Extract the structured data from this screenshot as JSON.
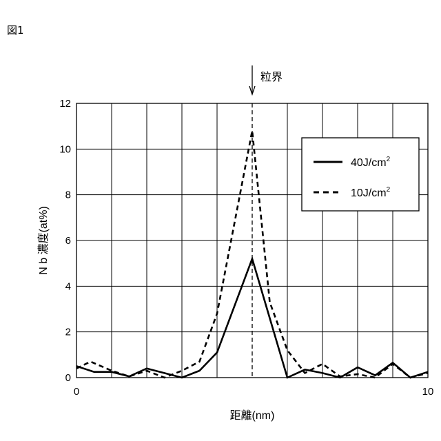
{
  "figure_label": "図1",
  "chart_data": {
    "type": "line",
    "annotation": "粒界",
    "xlabel": "距離(nm)",
    "ylabel": "N b 濃度(at%)",
    "xlim": [
      0,
      10
    ],
    "ylim": [
      0,
      12
    ],
    "x_ticks": [
      "0",
      "10"
    ],
    "y_ticks": [
      "0",
      "2",
      "4",
      "6",
      "8",
      "10",
      "12"
    ],
    "grid": true,
    "legend_position": "top-right",
    "boundary_x": 5,
    "series": [
      {
        "name": "40J/cm",
        "name_sup": "2",
        "style": "solid",
        "x": [
          0,
          0.5,
          1,
          1.5,
          2,
          2.5,
          3,
          3.5,
          4,
          5,
          6,
          6.5,
          7,
          7.5,
          8,
          8.5,
          9,
          9.5,
          10
        ],
        "y": [
          0.5,
          0.25,
          0.25,
          0.05,
          0.4,
          0.2,
          0.0,
          0.3,
          1.1,
          5.2,
          0.0,
          0.35,
          0.2,
          0.0,
          0.45,
          0.1,
          0.65,
          0.0,
          0.25
        ]
      },
      {
        "name": "10J/cm",
        "name_sup": "2",
        "style": "dashed",
        "x": [
          0,
          0.4,
          1,
          1.5,
          2,
          2.5,
          3,
          3.5,
          4,
          4.5,
          5,
          5.5,
          6,
          6.5,
          7,
          7.5,
          8,
          8.5,
          9,
          9.5,
          10
        ],
        "y": [
          0.4,
          0.7,
          0.3,
          0.05,
          0.3,
          0.0,
          0.3,
          0.7,
          2.8,
          6.8,
          10.8,
          3.3,
          1.2,
          0.2,
          0.6,
          0.05,
          0.15,
          0.0,
          0.6,
          0.0,
          0.2
        ]
      }
    ]
  }
}
